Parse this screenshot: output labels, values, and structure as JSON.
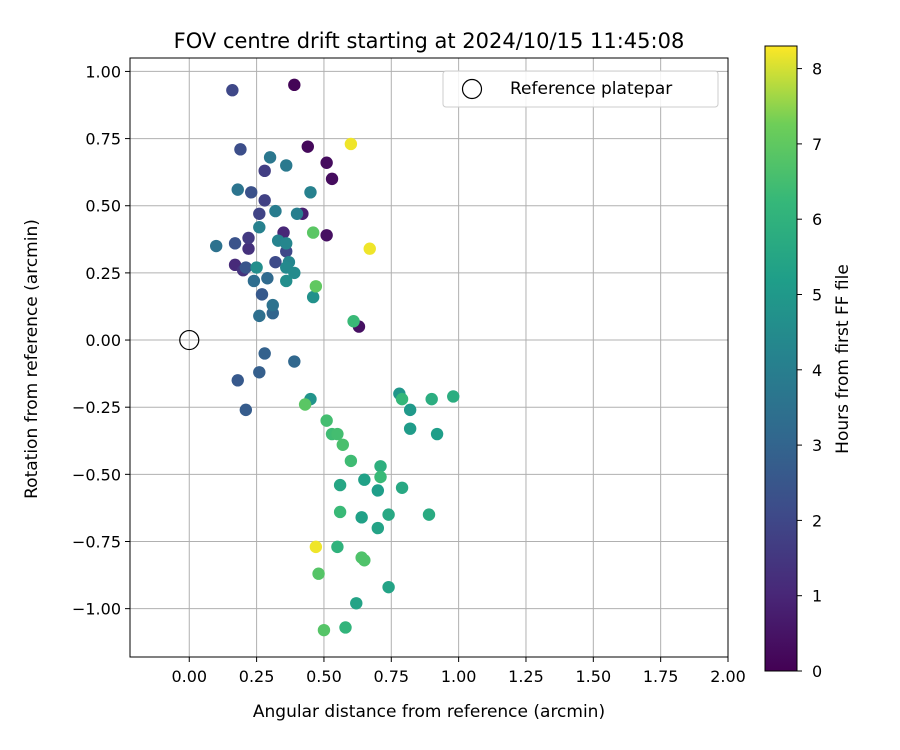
{
  "chart_data": {
    "type": "scatter",
    "title": "FOV centre drift starting at 2024/10/15 11:45:08",
    "xlabel": "Angular distance from reference (arcmin)",
    "ylabel": "Rotation from reference (arcmin)",
    "xlim": [
      -0.22,
      2.0
    ],
    "ylim": [
      -1.18,
      1.05
    ],
    "xticks": [
      "0.00",
      "0.25",
      "0.50",
      "0.75",
      "1.00",
      "1.25",
      "1.50",
      "1.75",
      "2.00"
    ],
    "yticks": [
      "−1.00",
      "−0.75",
      "−0.50",
      "−0.25",
      "0.00",
      "0.25",
      "0.50",
      "0.75",
      "1.00"
    ],
    "grid": true,
    "legend": {
      "position": "top-right",
      "entries": [
        "Reference platepar"
      ]
    },
    "reference_point": {
      "x": 0.0,
      "y": 0.0
    },
    "colorbar": {
      "label": "Hours from first FF file",
      "range": [
        0,
        8.3
      ],
      "ticks": [
        "0",
        "1",
        "2",
        "3",
        "4",
        "5",
        "6",
        "7",
        "8"
      ],
      "colormap": "viridis"
    },
    "points": [
      {
        "x": 0.39,
        "y": 0.95,
        "h": 0.1
      },
      {
        "x": 0.44,
        "y": 0.72,
        "h": 0.2
      },
      {
        "x": 0.51,
        "y": 0.66,
        "h": 0.3
      },
      {
        "x": 0.53,
        "y": 0.6,
        "h": 0.3
      },
      {
        "x": 0.51,
        "y": 0.39,
        "h": 0.4
      },
      {
        "x": 0.63,
        "y": 0.05,
        "h": 0.4
      },
      {
        "x": 0.42,
        "y": 0.47,
        "h": 0.8
      },
      {
        "x": 0.35,
        "y": 0.4,
        "h": 1.0
      },
      {
        "x": 0.17,
        "y": 0.28,
        "h": 1.1
      },
      {
        "x": 0.22,
        "y": 0.34,
        "h": 1.3
      },
      {
        "x": 0.2,
        "y": 0.26,
        "h": 1.4
      },
      {
        "x": 0.22,
        "y": 0.38,
        "h": 1.6
      },
      {
        "x": 0.28,
        "y": 0.63,
        "h": 1.7
      },
      {
        "x": 0.28,
        "y": 0.52,
        "h": 1.8
      },
      {
        "x": 0.26,
        "y": 0.47,
        "h": 1.9
      },
      {
        "x": 0.16,
        "y": 0.93,
        "h": 2.0
      },
      {
        "x": 0.36,
        "y": 0.33,
        "h": 2.0
      },
      {
        "x": 0.32,
        "y": 0.29,
        "h": 2.1
      },
      {
        "x": 0.19,
        "y": 0.71,
        "h": 2.2
      },
      {
        "x": 0.23,
        "y": 0.55,
        "h": 2.3
      },
      {
        "x": 0.17,
        "y": 0.36,
        "h": 2.4
      },
      {
        "x": 0.21,
        "y": 0.27,
        "h": 2.5
      },
      {
        "x": 0.27,
        "y": 0.17,
        "h": 2.6
      },
      {
        "x": 0.18,
        "y": -0.15,
        "h": 2.6
      },
      {
        "x": 0.21,
        "y": -0.26,
        "h": 2.7
      },
      {
        "x": 0.26,
        "y": -0.12,
        "h": 2.8
      },
      {
        "x": 0.28,
        "y": -0.05,
        "h": 2.9
      },
      {
        "x": 0.31,
        "y": 0.1,
        "h": 3.0
      },
      {
        "x": 0.39,
        "y": -0.08,
        "h": 3.1
      },
      {
        "x": 0.29,
        "y": 0.23,
        "h": 3.2
      },
      {
        "x": 0.24,
        "y": 0.22,
        "h": 3.3
      },
      {
        "x": 0.26,
        "y": 0.09,
        "h": 3.4
      },
      {
        "x": 0.31,
        "y": 0.13,
        "h": 3.5
      },
      {
        "x": 0.1,
        "y": 0.35,
        "h": 3.5
      },
      {
        "x": 0.18,
        "y": 0.56,
        "h": 3.6
      },
      {
        "x": 0.3,
        "y": 0.68,
        "h": 3.7
      },
      {
        "x": 0.36,
        "y": 0.65,
        "h": 3.8
      },
      {
        "x": 0.32,
        "y": 0.48,
        "h": 3.9
      },
      {
        "x": 0.4,
        "y": 0.47,
        "h": 4.0
      },
      {
        "x": 0.45,
        "y": 0.55,
        "h": 4.1
      },
      {
        "x": 0.26,
        "y": 0.42,
        "h": 4.1
      },
      {
        "x": 0.33,
        "y": 0.37,
        "h": 4.2
      },
      {
        "x": 0.36,
        "y": 0.36,
        "h": 4.3
      },
      {
        "x": 0.37,
        "y": 0.29,
        "h": 4.3
      },
      {
        "x": 0.36,
        "y": 0.27,
        "h": 4.4
      },
      {
        "x": 0.39,
        "y": 0.25,
        "h": 4.5
      },
      {
        "x": 0.36,
        "y": 0.22,
        "h": 4.6
      },
      {
        "x": 0.25,
        "y": 0.27,
        "h": 4.6
      },
      {
        "x": 0.46,
        "y": 0.16,
        "h": 4.7
      },
      {
        "x": 0.45,
        "y": -0.22,
        "h": 4.8
      },
      {
        "x": 0.78,
        "y": -0.2,
        "h": 4.9
      },
      {
        "x": 0.82,
        "y": -0.26,
        "h": 5.0
      },
      {
        "x": 0.82,
        "y": -0.33,
        "h": 5.1
      },
      {
        "x": 0.92,
        "y": -0.35,
        "h": 5.2
      },
      {
        "x": 0.7,
        "y": -0.56,
        "h": 5.2
      },
      {
        "x": 0.65,
        "y": -0.52,
        "h": 5.3
      },
      {
        "x": 0.64,
        "y": -0.66,
        "h": 5.3
      },
      {
        "x": 0.7,
        "y": -0.7,
        "h": 5.4
      },
      {
        "x": 0.62,
        "y": -0.98,
        "h": 5.4
      },
      {
        "x": 0.74,
        "y": -0.92,
        "h": 5.4
      },
      {
        "x": 0.56,
        "y": -0.54,
        "h": 5.5
      },
      {
        "x": 0.74,
        "y": -0.65,
        "h": 5.6
      },
      {
        "x": 0.79,
        "y": -0.55,
        "h": 5.6
      },
      {
        "x": 0.89,
        "y": -0.65,
        "h": 5.7
      },
      {
        "x": 0.98,
        "y": -0.21,
        "h": 5.8
      },
      {
        "x": 0.9,
        "y": -0.22,
        "h": 5.8
      },
      {
        "x": 0.71,
        "y": -0.47,
        "h": 5.9
      },
      {
        "x": 0.55,
        "y": -0.77,
        "h": 6.0
      },
      {
        "x": 0.58,
        "y": -1.07,
        "h": 6.1
      },
      {
        "x": 0.79,
        "y": -0.22,
        "h": 6.2
      },
      {
        "x": 0.71,
        "y": -0.51,
        "h": 6.3
      },
      {
        "x": 0.56,
        "y": -0.64,
        "h": 6.3
      },
      {
        "x": 0.61,
        "y": 0.07,
        "h": 6.3
      },
      {
        "x": 0.6,
        "y": -0.45,
        "h": 6.4
      },
      {
        "x": 0.53,
        "y": -0.35,
        "h": 6.4
      },
      {
        "x": 0.55,
        "y": -0.35,
        "h": 6.5
      },
      {
        "x": 0.51,
        "y": -0.3,
        "h": 6.5
      },
      {
        "x": 0.57,
        "y": -0.39,
        "h": 6.6
      },
      {
        "x": 0.64,
        "y": -0.81,
        "h": 6.7
      },
      {
        "x": 0.65,
        "y": -0.82,
        "h": 6.7
      },
      {
        "x": 0.48,
        "y": -0.87,
        "h": 6.8
      },
      {
        "x": 0.5,
        "y": -1.08,
        "h": 6.8
      },
      {
        "x": 0.43,
        "y": -0.24,
        "h": 6.9
      },
      {
        "x": 0.46,
        "y": 0.4,
        "h": 6.9
      },
      {
        "x": 0.47,
        "y": 0.2,
        "h": 7.0
      },
      {
        "x": 0.6,
        "y": 0.73,
        "h": 8.2
      },
      {
        "x": 0.67,
        "y": 0.34,
        "h": 8.2
      },
      {
        "x": 0.47,
        "y": -0.77,
        "h": 8.2
      }
    ]
  }
}
